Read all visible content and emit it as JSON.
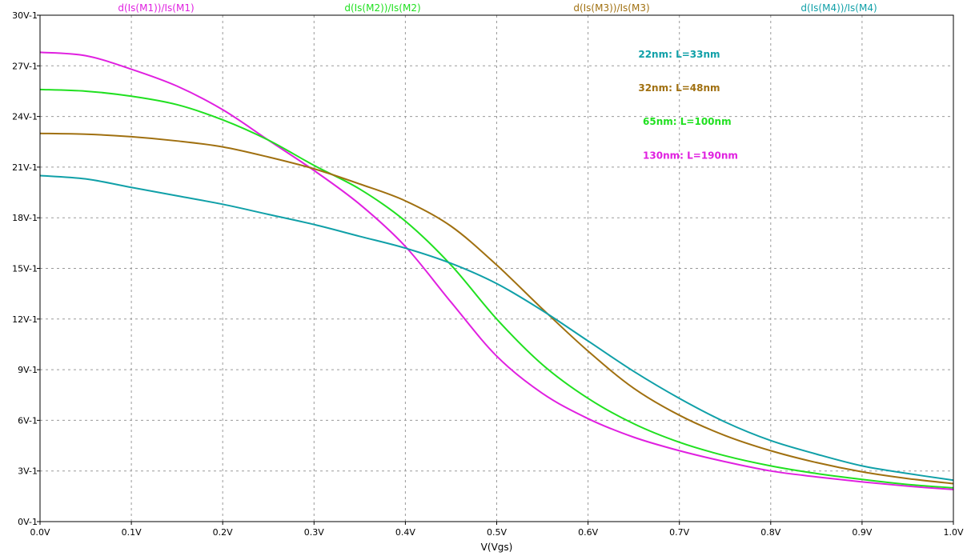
{
  "chart_data": {
    "type": "line",
    "xlabel": "V(Vgs)",
    "xlim": [
      0,
      1.0
    ],
    "ylim": [
      0,
      30
    ],
    "grid": true,
    "x_ticks": [
      0,
      0.1,
      0.2,
      0.3,
      0.4,
      0.5,
      0.6,
      0.7,
      0.8,
      0.9,
      1.0
    ],
    "x_tick_labels": [
      "0.0V",
      "0.1V",
      "0.2V",
      "0.3V",
      "0.4V",
      "0.5V",
      "0.6V",
      "0.7V",
      "0.8V",
      "0.9V",
      "1.0V"
    ],
    "y_ticks": [
      0,
      3,
      6,
      9,
      12,
      15,
      18,
      21,
      24,
      27,
      30
    ],
    "y_tick_labels": [
      "0V-1",
      "3V-1",
      "6V-1",
      "9V-1",
      "12V-1",
      "15V-1",
      "18V-1",
      "21V-1",
      "24V-1",
      "27V-1",
      "30V-1"
    ],
    "legend_placement": "top",
    "series": [
      {
        "name": "d(Is(M1))/Is(M1)",
        "color": "#e020e0",
        "x": [
          0,
          0.05,
          0.1,
          0.15,
          0.2,
          0.25,
          0.3,
          0.35,
          0.4,
          0.45,
          0.5,
          0.55,
          0.6,
          0.65,
          0.7,
          0.75,
          0.8,
          0.85,
          0.9,
          0.95,
          1.0
        ],
        "y": [
          27.8,
          27.6,
          26.8,
          25.8,
          24.4,
          22.6,
          20.8,
          18.8,
          16.3,
          13.0,
          9.8,
          7.6,
          6.1,
          5.0,
          4.2,
          3.55,
          3.0,
          2.65,
          2.35,
          2.1,
          1.9
        ]
      },
      {
        "name": "d(Is(M2))/Is(M2)",
        "color": "#20e020",
        "x": [
          0,
          0.05,
          0.1,
          0.15,
          0.2,
          0.25,
          0.3,
          0.35,
          0.4,
          0.45,
          0.5,
          0.55,
          0.6,
          0.65,
          0.7,
          0.75,
          0.8,
          0.85,
          0.9,
          0.95,
          1.0
        ],
        "y": [
          25.6,
          25.5,
          25.2,
          24.7,
          23.8,
          22.6,
          21.1,
          19.7,
          17.8,
          15.2,
          12.0,
          9.3,
          7.3,
          5.8,
          4.7,
          3.9,
          3.3,
          2.85,
          2.5,
          2.2,
          2.0
        ]
      },
      {
        "name": "d(Is(M3))/Is(M3)",
        "color": "#a07010",
        "x": [
          0,
          0.05,
          0.1,
          0.15,
          0.2,
          0.25,
          0.3,
          0.35,
          0.4,
          0.45,
          0.5,
          0.55,
          0.6,
          0.65,
          0.7,
          0.75,
          0.8,
          0.85,
          0.9,
          0.95,
          1.0
        ],
        "y": [
          23.0,
          22.95,
          22.8,
          22.55,
          22.2,
          21.6,
          20.9,
          20.0,
          19.0,
          17.5,
          15.2,
          12.6,
          10.1,
          7.9,
          6.3,
          5.1,
          4.2,
          3.5,
          2.95,
          2.55,
          2.25
        ]
      },
      {
        "name": "d(Is(M4))/Is(M4)",
        "color": "#10a0a8",
        "x": [
          0,
          0.05,
          0.1,
          0.15,
          0.2,
          0.25,
          0.3,
          0.35,
          0.4,
          0.45,
          0.5,
          0.55,
          0.6,
          0.65,
          0.7,
          0.75,
          0.8,
          0.85,
          0.9,
          0.95,
          1.0
        ],
        "y": [
          20.5,
          20.3,
          19.8,
          19.3,
          18.8,
          18.2,
          17.6,
          16.9,
          16.2,
          15.3,
          14.1,
          12.5,
          10.7,
          8.9,
          7.3,
          5.9,
          4.8,
          4.0,
          3.3,
          2.85,
          2.45
        ]
      }
    ],
    "annotations": [
      {
        "text": "22nm: L=33nm",
        "color": "#10a0a8",
        "x": 0.655,
        "y": 27.5
      },
      {
        "text": "32nm: L=48nm",
        "color": "#a07010",
        "x": 0.655,
        "y": 25.5
      },
      {
        "text": "65nm: L=100nm",
        "color": "#20e020",
        "x": 0.66,
        "y": 23.5
      },
      {
        "text": "130nm: L=190nm",
        "color": "#e020e0",
        "x": 0.66,
        "y": 21.5
      }
    ]
  }
}
